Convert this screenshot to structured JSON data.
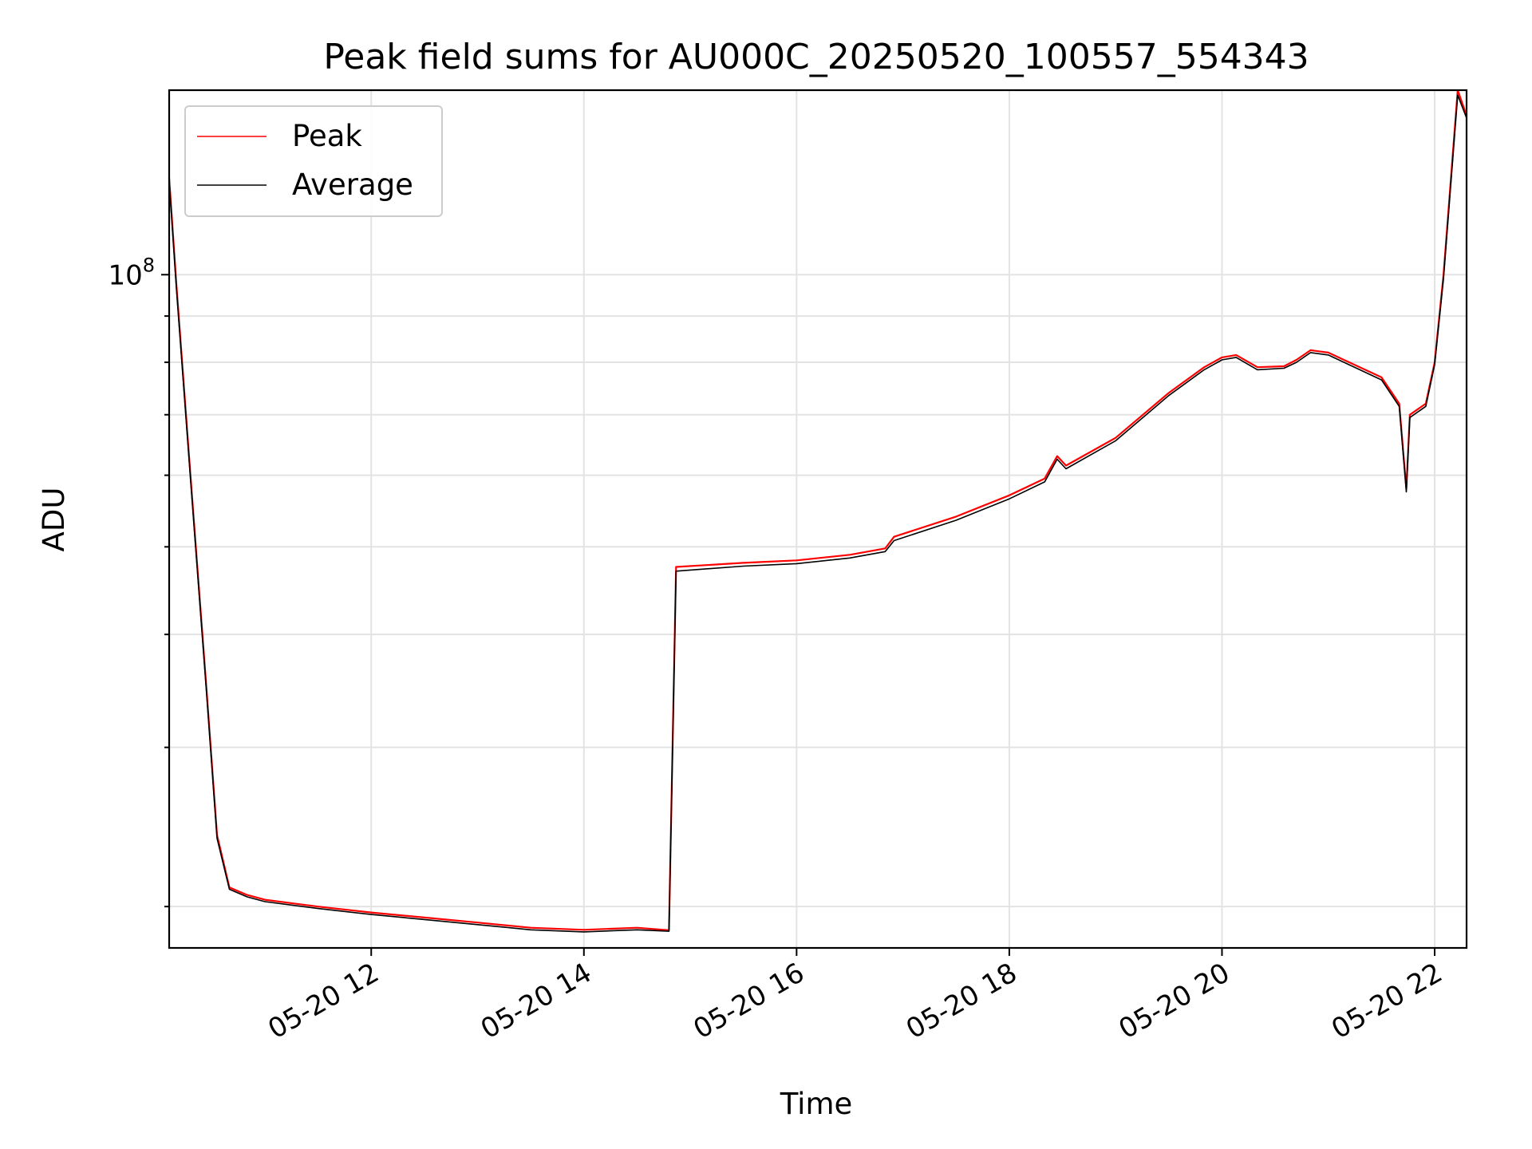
{
  "chart_data": {
    "type": "line",
    "title": "Peak field sums for AU000C_20250520_100557_554343",
    "xlabel": "Time",
    "ylabel": "ADU",
    "x_range": [
      "2025-05-20 10:06",
      "2025-05-20 22:18"
    ],
    "y_scale": "log",
    "y_range": [
      18000000,
      160000000
    ],
    "grid": true,
    "legend_position": "top-left",
    "x_ticks": [
      {
        "time": "2025-05-20 12:00",
        "label": "05-20 12"
      },
      {
        "time": "2025-05-20 14:00",
        "label": "05-20 14"
      },
      {
        "time": "2025-05-20 16:00",
        "label": "05-20 16"
      },
      {
        "time": "2025-05-20 18:00",
        "label": "05-20 18"
      },
      {
        "time": "2025-05-20 20:00",
        "label": "05-20 20"
      },
      {
        "time": "2025-05-20 22:00",
        "label": "05-20 22"
      }
    ],
    "y_major_ticks": [
      {
        "value": 100000000,
        "label": "10",
        "exponent": "8"
      }
    ],
    "y_minor_ticks": [
      20000000,
      30000000,
      40000000,
      50000000,
      60000000,
      70000000,
      80000000,
      90000000
    ],
    "series": [
      {
        "name": "Peak",
        "color": "#ff0000",
        "points": [
          [
            "2025-05-20 10:06",
            128000000
          ],
          [
            "2025-05-20 10:10",
            98000000
          ],
          [
            "2025-05-20 10:18",
            60000000
          ],
          [
            "2025-05-20 10:27",
            35000000
          ],
          [
            "2025-05-20 10:33",
            24000000
          ],
          [
            "2025-05-20 10:40",
            21000000
          ],
          [
            "2025-05-20 10:50",
            20600000
          ],
          [
            "2025-05-20 11:00",
            20350000
          ],
          [
            "2025-05-20 11:30",
            20000000
          ],
          [
            "2025-05-20 12:00",
            19700000
          ],
          [
            "2025-05-20 12:30",
            19450000
          ],
          [
            "2025-05-20 13:00",
            19200000
          ],
          [
            "2025-05-20 13:30",
            18950000
          ],
          [
            "2025-05-20 14:00",
            18850000
          ],
          [
            "2025-05-20 14:30",
            18950000
          ],
          [
            "2025-05-20 14:48",
            18830000
          ],
          [
            "2025-05-20 14:52",
            47500000
          ],
          [
            "2025-05-20 15:30",
            48000000
          ],
          [
            "2025-05-20 16:00",
            48300000
          ],
          [
            "2025-05-20 16:30",
            49000000
          ],
          [
            "2025-05-20 16:50",
            49800000
          ],
          [
            "2025-05-20 16:55",
            51300000
          ],
          [
            "2025-05-20 17:30",
            54000000
          ],
          [
            "2025-05-20 18:00",
            57000000
          ],
          [
            "2025-05-20 18:20",
            59500000
          ],
          [
            "2025-05-20 18:27",
            63000000
          ],
          [
            "2025-05-20 18:32",
            61500000
          ],
          [
            "2025-05-20 19:00",
            66000000
          ],
          [
            "2025-05-20 19:30",
            74000000
          ],
          [
            "2025-05-20 19:50",
            79000000
          ],
          [
            "2025-05-20 20:00",
            81000000
          ],
          [
            "2025-05-20 20:08",
            81500000
          ],
          [
            "2025-05-20 20:20",
            79000000
          ],
          [
            "2025-05-20 20:35",
            79200000
          ],
          [
            "2025-05-20 20:42",
            80500000
          ],
          [
            "2025-05-20 20:50",
            82500000
          ],
          [
            "2025-05-20 21:00",
            82000000
          ],
          [
            "2025-05-20 21:30",
            77000000
          ],
          [
            "2025-05-20 21:40",
            72000000
          ],
          [
            "2025-05-20 21:44",
            58000000
          ],
          [
            "2025-05-20 21:46",
            70000000
          ],
          [
            "2025-05-20 21:55",
            72000000
          ],
          [
            "2025-05-20 22:00",
            80000000
          ],
          [
            "2025-05-20 22:05",
            100000000
          ],
          [
            "2025-05-20 22:13",
            160000000
          ],
          [
            "2025-05-20 22:18",
            150000000
          ]
        ]
      },
      {
        "name": "Average",
        "color": "#000000",
        "points": [
          [
            "2025-05-20 10:06",
            127000000
          ],
          [
            "2025-05-20 10:10",
            97000000
          ],
          [
            "2025-05-20 10:18",
            59500000
          ],
          [
            "2025-05-20 10:27",
            34700000
          ],
          [
            "2025-05-20 10:33",
            23800000
          ],
          [
            "2025-05-20 10:40",
            20900000
          ],
          [
            "2025-05-20 10:50",
            20500000
          ],
          [
            "2025-05-20 11:00",
            20250000
          ],
          [
            "2025-05-20 11:30",
            19900000
          ],
          [
            "2025-05-20 12:00",
            19600000
          ],
          [
            "2025-05-20 12:30",
            19350000
          ],
          [
            "2025-05-20 13:00",
            19100000
          ],
          [
            "2025-05-20 13:30",
            18850000
          ],
          [
            "2025-05-20 14:00",
            18750000
          ],
          [
            "2025-05-20 14:30",
            18850000
          ],
          [
            "2025-05-20 14:48",
            18780000
          ],
          [
            "2025-05-20 14:52",
            47000000
          ],
          [
            "2025-05-20 15:30",
            47600000
          ],
          [
            "2025-05-20 16:00",
            47900000
          ],
          [
            "2025-05-20 16:30",
            48600000
          ],
          [
            "2025-05-20 16:50",
            49400000
          ],
          [
            "2025-05-20 16:55",
            50800000
          ],
          [
            "2025-05-20 17:30",
            53500000
          ],
          [
            "2025-05-20 18:00",
            56500000
          ],
          [
            "2025-05-20 18:20",
            59000000
          ],
          [
            "2025-05-20 18:27",
            62500000
          ],
          [
            "2025-05-20 18:32",
            61000000
          ],
          [
            "2025-05-20 19:00",
            65500000
          ],
          [
            "2025-05-20 19:30",
            73500000
          ],
          [
            "2025-05-20 19:50",
            78500000
          ],
          [
            "2025-05-20 20:00",
            80500000
          ],
          [
            "2025-05-20 20:08",
            81000000
          ],
          [
            "2025-05-20 20:20",
            78500000
          ],
          [
            "2025-05-20 20:35",
            78800000
          ],
          [
            "2025-05-20 20:42",
            80000000
          ],
          [
            "2025-05-20 20:50",
            82000000
          ],
          [
            "2025-05-20 21:00",
            81500000
          ],
          [
            "2025-05-20 21:30",
            76500000
          ],
          [
            "2025-05-20 21:40",
            71500000
          ],
          [
            "2025-05-20 21:44",
            57500000
          ],
          [
            "2025-05-20 21:46",
            69500000
          ],
          [
            "2025-05-20 21:55",
            71500000
          ],
          [
            "2025-05-20 22:00",
            79500000
          ],
          [
            "2025-05-20 22:05",
            99000000
          ],
          [
            "2025-05-20 22:13",
            158000000
          ],
          [
            "2025-05-20 22:18",
            149000000
          ]
        ]
      }
    ]
  }
}
